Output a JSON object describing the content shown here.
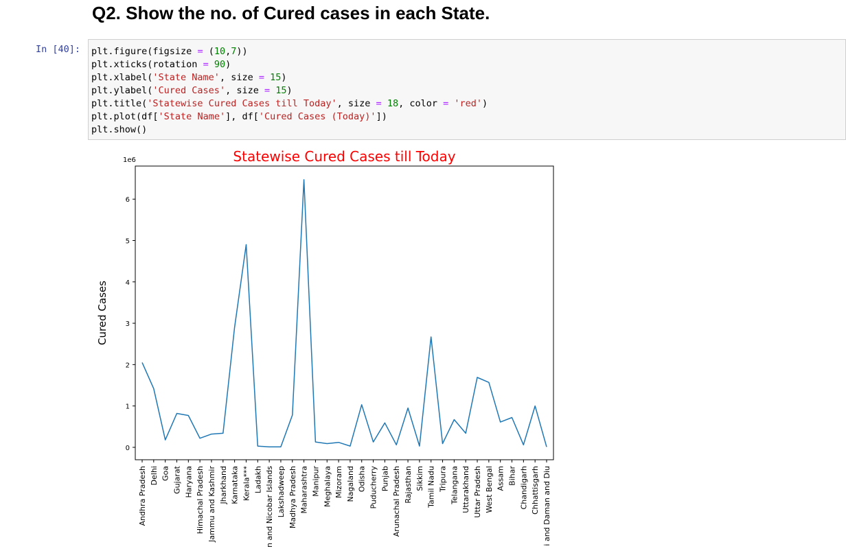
{
  "heading": "Q2. Show the no. of Cured cases in each State.",
  "prompt": "In [40]:",
  "code_lines": [
    [
      {
        "t": "plt.figure(figsize ",
        "c": "nm"
      },
      {
        "t": "=",
        "c": "op"
      },
      {
        "t": " (",
        "c": "nm"
      },
      {
        "t": "10",
        "c": "num"
      },
      {
        "t": ",",
        "c": "nm"
      },
      {
        "t": "7",
        "c": "num"
      },
      {
        "t": "))",
        "c": "nm"
      }
    ],
    [
      {
        "t": "plt.xticks(rotation ",
        "c": "nm"
      },
      {
        "t": "=",
        "c": "op"
      },
      {
        "t": " ",
        "c": "nm"
      },
      {
        "t": "90",
        "c": "num"
      },
      {
        "t": ")",
        "c": "nm"
      }
    ],
    [
      {
        "t": "plt.xlabel(",
        "c": "nm"
      },
      {
        "t": "'State Name'",
        "c": "str"
      },
      {
        "t": ", size ",
        "c": "nm"
      },
      {
        "t": "=",
        "c": "op"
      },
      {
        "t": " ",
        "c": "nm"
      },
      {
        "t": "15",
        "c": "num"
      },
      {
        "t": ")",
        "c": "nm"
      }
    ],
    [
      {
        "t": "plt.ylabel(",
        "c": "nm"
      },
      {
        "t": "'Cured Cases'",
        "c": "str"
      },
      {
        "t": ", size ",
        "c": "nm"
      },
      {
        "t": "=",
        "c": "op"
      },
      {
        "t": " ",
        "c": "nm"
      },
      {
        "t": "15",
        "c": "num"
      },
      {
        "t": ")",
        "c": "nm"
      }
    ],
    [
      {
        "t": "plt.title(",
        "c": "nm"
      },
      {
        "t": "'Statewise Cured Cases till Today'",
        "c": "str"
      },
      {
        "t": ", size ",
        "c": "nm"
      },
      {
        "t": "=",
        "c": "op"
      },
      {
        "t": " ",
        "c": "nm"
      },
      {
        "t": "18",
        "c": "num"
      },
      {
        "t": ", color ",
        "c": "nm"
      },
      {
        "t": "=",
        "c": "op"
      },
      {
        "t": " ",
        "c": "nm"
      },
      {
        "t": "'red'",
        "c": "str"
      },
      {
        "t": ")",
        "c": "nm"
      }
    ],
    [
      {
        "t": "plt.plot(df[",
        "c": "nm"
      },
      {
        "t": "'State Name'",
        "c": "str"
      },
      {
        "t": "], df[",
        "c": "nm"
      },
      {
        "t": "'Cured Cases (Today)'",
        "c": "str"
      },
      {
        "t": "])",
        "c": "nm"
      }
    ],
    [
      {
        "t": "plt.show()",
        "c": "nm"
      }
    ]
  ],
  "chart_data": {
    "type": "line",
    "title": "Statewise Cured Cases till Today",
    "title_color": "#ff0000",
    "xlabel": "",
    "ylabel": "Cured Cases",
    "y_offset_label": "1e6",
    "ylim": [
      -0.3,
      6.8
    ],
    "yticks": [
      0,
      1,
      2,
      3,
      4,
      5,
      6
    ],
    "grid": false,
    "line_color": "#1f77b4",
    "categories": [
      "Andhra Pradesh",
      "Delhi",
      "Goa",
      "Gujarat",
      "Haryana",
      "Himachal Pradesh",
      "Jammu and Kashmir",
      "Jharkhand",
      "Karnataka",
      "Kerala***",
      "Ladakh",
      "n and Nicobar Islands",
      "Lakshadweep",
      "Madhya Pradesh",
      "Maharashtra",
      "Manipur",
      "Meghalaya",
      "Mizoram",
      "Nagaland",
      "Odisha",
      "Puducherry",
      "Punjab",
      "Arunachal Pradesh",
      "Rajasthan",
      "Sikkim",
      "Tamil Nadu",
      "Tripura",
      "Telangana",
      "Uttarakhand",
      "Uttar Pradesh",
      "West Bengal",
      "Assam",
      "Bihar",
      "Chandigarh",
      "Chhattisgarh",
      "i and Daman and Diu"
    ],
    "values": [
      2.05,
      1.42,
      0.18,
      0.82,
      0.77,
      0.22,
      0.32,
      0.34,
      2.9,
      4.9,
      0.03,
      0.01,
      0.01,
      0.78,
      6.47,
      0.13,
      0.09,
      0.12,
      0.03,
      1.03,
      0.13,
      0.59,
      0.06,
      0.95,
      0.03,
      2.67,
      0.09,
      0.67,
      0.34,
      1.69,
      1.57,
      0.61,
      0.72,
      0.06,
      1.0,
      0.01
    ]
  }
}
